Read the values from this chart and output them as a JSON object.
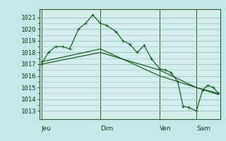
{
  "background_color": "#c5e8e8",
  "plot_bg_color": "#d4eded",
  "grid_color": "#94bfbf",
  "line_color": "#1a6020",
  "ylabel_ticks": [
    1013,
    1014,
    1015,
    1016,
    1017,
    1018,
    1019,
    1020,
    1021
  ],
  "ylim": [
    1012.3,
    1021.7
  ],
  "day_labels": [
    "Jeu",
    "Dim",
    "Ven",
    "Sam"
  ],
  "day_positions": [
    0.0,
    0.333,
    0.667,
    0.875
  ],
  "vline_positions": [
    0.0,
    0.333,
    0.667,
    0.875
  ],
  "series1_x": [
    0.0,
    0.04,
    0.08,
    0.12,
    0.16,
    0.21,
    0.25,
    0.29,
    0.333,
    0.37,
    0.42,
    0.46,
    0.5,
    0.54,
    0.58,
    0.62,
    0.667,
    0.7,
    0.73,
    0.77,
    0.8,
    0.83,
    0.875,
    0.91,
    0.94,
    0.97,
    1.0
  ],
  "series1_y": [
    1017.0,
    1018.0,
    1018.5,
    1018.5,
    1018.3,
    1020.0,
    1020.5,
    1021.2,
    1020.5,
    1020.3,
    1019.8,
    1019.0,
    1018.7,
    1018.0,
    1018.6,
    1017.5,
    1016.6,
    1016.5,
    1016.3,
    1015.5,
    1013.4,
    1013.3,
    1013.0,
    1014.8,
    1015.2,
    1015.0,
    1014.5
  ],
  "series2_x": [
    0.0,
    0.333,
    0.667,
    0.875,
    1.0
  ],
  "series2_y": [
    1017.0,
    1018.0,
    1016.5,
    1015.0,
    1014.5
  ],
  "series3_x": [
    0.0,
    0.333,
    0.667,
    0.875,
    1.0
  ],
  "series3_y": [
    1017.2,
    1018.3,
    1016.0,
    1015.0,
    1014.4
  ],
  "xlim": [
    -0.01,
    1.01
  ],
  "tick_fontsize": 6.5,
  "label_fontsize": 8.5
}
